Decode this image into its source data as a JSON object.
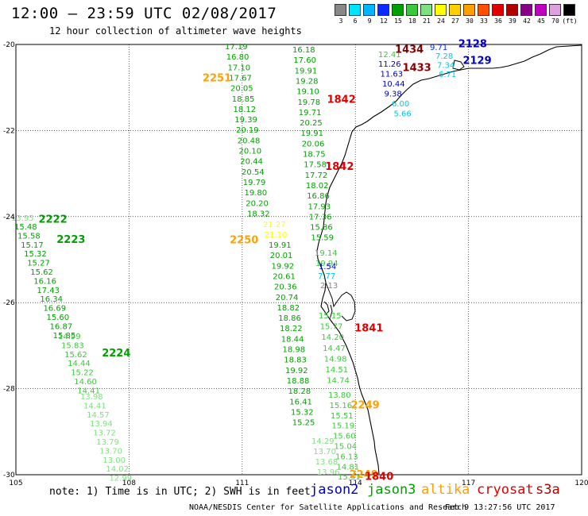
{
  "header": {
    "title": "12:00 – 23:59 UTC 02/08/2017",
    "subtitle": "12 hour collection of altimeter wave heights"
  },
  "colorbar": {
    "colors": [
      "#888888",
      "#00e5ff",
      "#00b5ff",
      "#0a2aff",
      "#00a000",
      "#3cc83c",
      "#80e080",
      "#ffff00",
      "#ffd000",
      "#ffa000",
      "#ff5000",
      "#e00000",
      "#b00000",
      "#880088",
      "#c000c0",
      "#e0a0e0",
      "#000000"
    ],
    "labels": [
      "3",
      "6",
      "9",
      "12",
      "15",
      "18",
      "21",
      "24",
      "27",
      "30",
      "33",
      "36",
      "39",
      "42",
      "45",
      "70",
      "(ft)"
    ]
  },
  "axes": {
    "lon_labels": [
      "105",
      "108",
      "111",
      "114",
      "117",
      "120"
    ],
    "lat_labels": [
      "-20",
      "-22",
      "-24",
      "-26",
      "-28",
      "-30"
    ]
  },
  "tracks": [
    {
      "color": "#00a000",
      "x0": 283,
      "y0": 58,
      "dx": 1.75,
      "dy": 13.15,
      "values": [
        "17.19",
        "16.80",
        "17.10",
        "17.67",
        "20.05",
        "18.85",
        "18.12",
        "19.39",
        "20.19",
        "20.48",
        "20.10",
        "20.44",
        "20.54",
        "19.79",
        "19.80",
        "20.20",
        "18.32"
      ]
    },
    {
      "color": "#ffff00",
      "x0": 331,
      "y0": 282,
      "dx": 1.75,
      "dy": 13.15,
      "values": [
        "21.27",
        "21.10"
      ]
    },
    {
      "color": "#00a000",
      "x0": 338,
      "y0": 308,
      "dx": 1.75,
      "dy": 13.15,
      "values": [
        "19.91",
        "20.01",
        "19.92",
        "20.61",
        "20.36",
        "20.74",
        "18.82",
        "18.86",
        "18.22",
        "18.44",
        "18.98",
        "18.83",
        "19.92",
        "18.88",
        "18.28",
        "16.41",
        "15.32",
        "15.25"
      ]
    },
    {
      "color": "#00a000",
      "x0": 368,
      "y0": 62,
      "dx": 1.3,
      "dy": 13.15,
      "values": [
        "16.18",
        "17.60",
        "19.91",
        "19.28",
        "19.10",
        "19.78",
        "19.71",
        "20.25",
        "19.91",
        "20.06",
        "18.75",
        "17.58",
        "17.72",
        "18.02",
        "16.86",
        "17.93",
        "17.36",
        "15.86",
        "15.59"
      ]
    },
    {
      "color": "#3cc83c",
      "x0": 396,
      "y0": 318,
      "dx": 1.0,
      "dy": 13.15,
      "values": [
        "19.14",
        "19.94"
      ]
    },
    {
      "color": "#3cc83c",
      "x0": 401,
      "y0": 397,
      "dx": 1.7,
      "dy": 13.6,
      "values": [
        "15.15",
        "15.77",
        "14.20",
        "14.47",
        "14.98",
        "14.51",
        "14.74"
      ]
    },
    {
      "color": "#3cc83c",
      "x0": 413,
      "y0": 497,
      "dx": 1.5,
      "dy": 12.9,
      "values": [
        "13.80",
        "15.16",
        "15.51",
        "15.19",
        "15.60",
        "15.04",
        "16.13",
        "14.81",
        "15.51"
      ]
    },
    {
      "color": "#80e080",
      "x0": 392,
      "y0": 555,
      "dx": 2.3,
      "dy": 13.0,
      "values": [
        "14.29",
        "13.70",
        "13.68",
        "13.96"
      ]
    },
    {
      "color": "#80e080",
      "x0": 14,
      "y0": 274,
      "dx": 4.05,
      "dy": 11.4,
      "values": [
        "13.95"
      ]
    },
    {
      "color": "#00a000",
      "x0": 18,
      "y0": 285,
      "dx": 4.05,
      "dy": 11.4,
      "values": [
        "15.48",
        "15.58",
        "15.17",
        "15.32",
        "15.27",
        "15.62",
        "16.16",
        "17.43",
        "16.34",
        "16.69",
        "15.60",
        "16.87",
        "15.85"
      ]
    },
    {
      "color": "#3cc83c",
      "x0": 73,
      "y0": 423,
      "dx": 4.05,
      "dy": 11.4,
      "values": [
        "14.99",
        "15.83",
        "15.62",
        "14.44",
        "15.22",
        "14.60",
        "14.41"
      ]
    },
    {
      "color": "#80e080",
      "x0": 101,
      "y0": 499,
      "dx": 4.05,
      "dy": 11.4,
      "values": [
        "13.98",
        "14.41",
        "14.57",
        "13.94",
        "13.72",
        "13.79",
        "13.70",
        "13.00",
        "14.02",
        "12.99"
      ]
    },
    {
      "color": "#3cc83c",
      "x0": 476,
      "y0": 68,
      "dx": 0,
      "dy": 0,
      "values": [
        "12.41"
      ]
    },
    {
      "color": "#0000c8",
      "x0": 476,
      "y0": 80,
      "dx": 2.5,
      "dy": 12.5,
      "values": [
        "11.26",
        "11.63",
        "10.44",
        "9.38"
      ]
    },
    {
      "color": "#00c8e0",
      "x0": 493,
      "y0": 130,
      "dx": 2.5,
      "dy": 12.5,
      "values": [
        "6.00",
        "5.66"
      ]
    },
    {
      "color": "#0a2aff",
      "x0": 541,
      "y0": 59,
      "dx": 0,
      "dy": 0,
      "values": [
        "9.71"
      ]
    },
    {
      "color": "#00c8e0",
      "x0": 548,
      "y0": 70,
      "dx": 2.0,
      "dy": 11.5,
      "values": [
        "7.28",
        "7.34",
        "6.71"
      ]
    },
    {
      "color": "#0000c8",
      "x0": 401,
      "y0": 335,
      "dx": 0,
      "dy": 0,
      "values": [
        "1.54"
      ]
    },
    {
      "color": "#00c8e0",
      "x0": 400,
      "y0": 347,
      "dx": 0,
      "dy": 0,
      "values": [
        "7.77"
      ]
    },
    {
      "color": "#888888",
      "x0": 403,
      "y0": 359,
      "dx": 0,
      "dy": 0,
      "values": [
        "2.13"
      ]
    }
  ],
  "time_labels": [
    {
      "text": "2251",
      "color": "#ffa000",
      "lon": 109.95,
      "lat": -20.77
    },
    {
      "text": "1842",
      "color": "#e00000",
      "lon": 113.25,
      "lat": -21.26
    },
    {
      "text": "1842",
      "color": "#e00000",
      "lon": 113.2,
      "lat": -22.82
    },
    {
      "text": "1434",
      "color": "#880000",
      "lon": 115.05,
      "lat": -20.1
    },
    {
      "text": "1433",
      "color": "#880000",
      "lon": 115.25,
      "lat": -20.53
    },
    {
      "text": "2128",
      "color": "#0000c8",
      "lon": 116.73,
      "lat": -19.97
    },
    {
      "text": "2129",
      "color": "#0000c8",
      "lon": 116.85,
      "lat": -20.36
    },
    {
      "text": "2222",
      "color": "#00a000",
      "lon": 105.6,
      "lat": -24.05
    },
    {
      "text": "2223",
      "color": "#00a000",
      "lon": 106.08,
      "lat": -24.52
    },
    {
      "text": "2250",
      "color": "#ffa000",
      "lon": 110.67,
      "lat": -24.53
    },
    {
      "text": "1841",
      "color": "#e00000",
      "lon": 113.98,
      "lat": -26.58
    },
    {
      "text": "2224",
      "color": "#00a000",
      "lon": 107.28,
      "lat": -27.16
    },
    {
      "text": "2249",
      "color": "#ffa000",
      "lon": 113.88,
      "lat": -28.37
    },
    {
      "text": "2249",
      "color": "#ffa000",
      "lon": 113.84,
      "lat": -29.98
    },
    {
      "text": "1840",
      "color": "#e00000",
      "lon": 114.25,
      "lat": -30.03
    }
  ],
  "footer": {
    "note": "note: 1) Time is in UTC; 2) SWH is in feet",
    "legend": [
      {
        "name": "jason2",
        "color": "#0000c8"
      },
      {
        "name": "jason3",
        "color": "#00a000"
      },
      {
        "name": "altika",
        "color": "#ffa000"
      },
      {
        "name": "cryosat",
        "color": "#e00000"
      },
      {
        "name": "s3a",
        "color": "#b00000"
      }
    ],
    "credit": "NOAA/NESDIS Center for Satellite Applications and Research",
    "timestamp": "Feb  9 13:27:56 UTC 2017"
  }
}
